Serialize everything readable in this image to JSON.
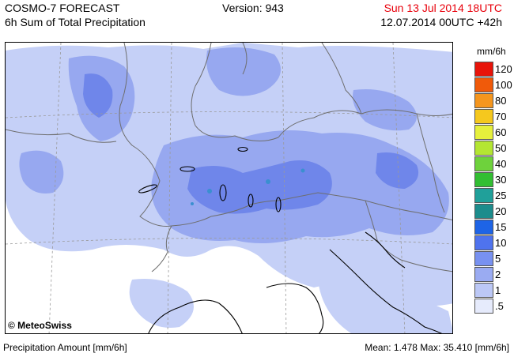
{
  "header": {
    "title": "COSMO-7 FORECAST",
    "subtitle": "6h Sum of Total Precipitation",
    "version": "Version: 943",
    "valid_time": "Sun 13 Jul 2014 18UTC",
    "run_time": "12.07.2014 00UTC +42h"
  },
  "legend": {
    "unit": "mm/6h",
    "items": [
      {
        "label": "120",
        "color": "#e8140a"
      },
      {
        "label": "100",
        "color": "#f05a0a"
      },
      {
        "label": "80",
        "color": "#f5961e"
      },
      {
        "label": "70",
        "color": "#f5c81e"
      },
      {
        "label": "60",
        "color": "#e6f03c"
      },
      {
        "label": "50",
        "color": "#b4e632"
      },
      {
        "label": "40",
        "color": "#6ed23c"
      },
      {
        "label": "30",
        "color": "#32be32"
      },
      {
        "label": "25",
        "color": "#20a09a"
      },
      {
        "label": "20",
        "color": "#1c8c8c"
      },
      {
        "label": "15",
        "color": "#1e64e6"
      },
      {
        "label": "10",
        "color": "#4f73ee"
      },
      {
        "label": "5",
        "color": "#7891f0"
      },
      {
        "label": "2",
        "color": "#9aabf2"
      },
      {
        "label": "1",
        "color": "#bcc8f6"
      },
      {
        "label": ".5",
        "color": "#e6ebfc"
      }
    ]
  },
  "map": {
    "credit": "© MeteoSwiss",
    "colors": {
      "light": "#c5d0f7",
      "medium": "#97a8f0",
      "strong": "#6f86ea",
      "peak": "#3a8fd0",
      "border": "#6e6e6e",
      "coast": "#000000",
      "grid": "#9a9a9a"
    }
  },
  "footer": {
    "label": "Precipitation Amount [mm/6h]",
    "stats": "Mean:  1.478 Max:  35.410 [mm/6h]"
  }
}
